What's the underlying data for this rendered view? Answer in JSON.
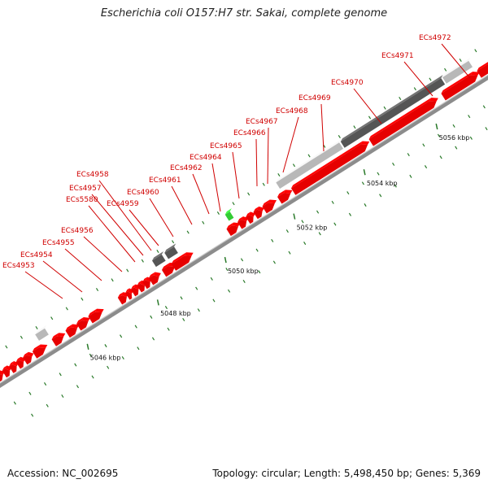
{
  "title": "Escherichia coli O157:H7 str. Sakai, complete genome",
  "accession": "Accession: NC_002695",
  "meta": "Topology: circular; Length: 5,498,450 bp; Genes: 5,369",
  "colors": {
    "cds": "#e60000",
    "rna": "#b8b8b8",
    "pseudo": "#555555",
    "other": "#33cc33",
    "backbone": "#8c8c8c",
    "tick": "#2a7a2a",
    "label": "#d00000"
  },
  "kbp_labels": [
    "5046 kbp",
    "5048 kbp",
    "5050 kbp",
    "5052 kbp",
    "5054 kbp",
    "5056 kbp"
  ],
  "gene_labels": [
    "ECs4953",
    "ECs4954",
    "ECs4955",
    "ECs4956",
    "ECs5580",
    "ECs4957",
    "ECs4958",
    "ECs4959",
    "ECs4960",
    "ECs4961",
    "ECs4962",
    "ECs4964",
    "ECs4965",
    "ECs4966",
    "ECs4967",
    "ECs4968",
    "ECs4969",
    "ECs4970",
    "ECs4971",
    "ECs4972"
  ]
}
